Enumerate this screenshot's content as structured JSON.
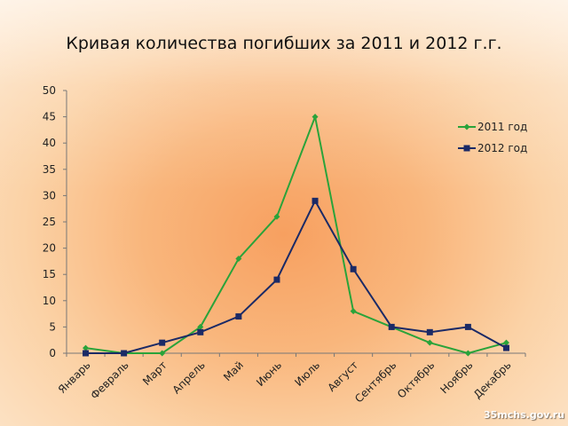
{
  "watermark": "35mchs.gov.ru",
  "chart_data": {
    "type": "line",
    "title": "Кривая количества погибших за 2011 и 2012 г.г.",
    "xlabel": "",
    "ylabel": "",
    "categories": [
      "Январь",
      "Февраль",
      "Март",
      "Апрель",
      "Май",
      "Июнь",
      "Июль",
      "Август",
      "Сентябрь",
      "Октябрь",
      "Ноябрь",
      "Декабрь"
    ],
    "ylim": [
      0,
      50
    ],
    "yticks": [
      0,
      5,
      10,
      15,
      20,
      25,
      30,
      35,
      40,
      45,
      50
    ],
    "grid": false,
    "legend_position": "right",
    "series": [
      {
        "name": "2011 год",
        "color": "#2aa33a",
        "marker": "diamond",
        "values": [
          1,
          0,
          0,
          5,
          18,
          26,
          45,
          8,
          5,
          2,
          0,
          2
        ]
      },
      {
        "name": "2012 год",
        "color": "#1b2a66",
        "marker": "square",
        "values": [
          0,
          0,
          2,
          4,
          7,
          14,
          29,
          16,
          5,
          4,
          5,
          1
        ]
      }
    ]
  }
}
